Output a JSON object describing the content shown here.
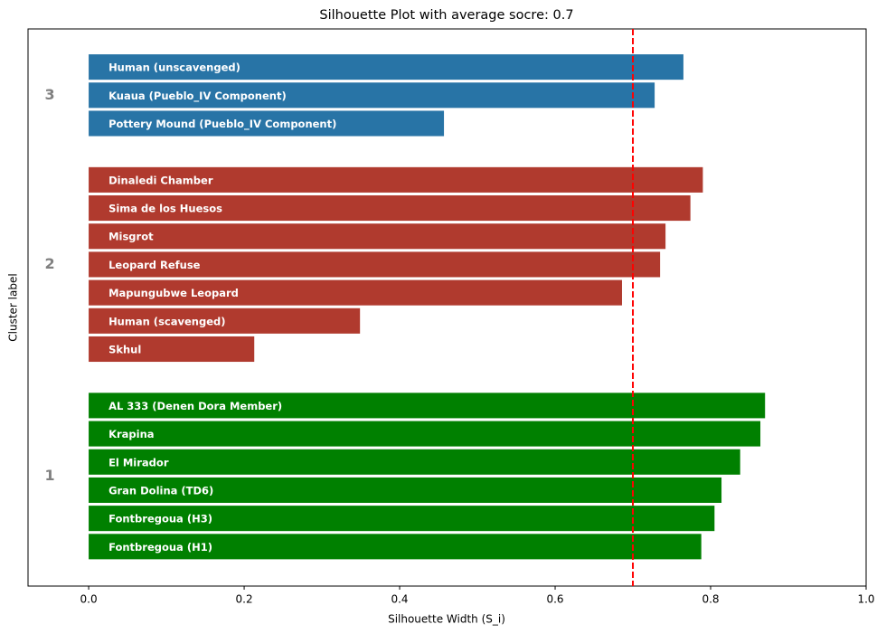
{
  "chart_data": {
    "type": "silhouette",
    "title": "Silhouette Plot with average socre: 0.7",
    "x_label": "Silhouette Width (S_i)",
    "y_label": "Cluster label",
    "xlim": [
      -0.078,
      1.0
    ],
    "xticks": [
      {
        "value": 0,
        "label": "0.0"
      },
      0.2,
      0.4,
      0.6,
      0.8,
      {
        "value": 1,
        "label": "1.0"
      }
    ],
    "average_line": 0.7,
    "average_line_color": "#ff0000",
    "series": [
      {
        "name": "1",
        "color": "#008000",
        "categories": [
          "AL 333 (Denen Dora Member)",
          "Krapina",
          "El Mirador",
          "Gran Dolina (TD6)",
          "Fontbregoua (H3)",
          "Fontbregoua (H1)"
        ],
        "values": [
          0.87,
          0.864,
          0.838,
          0.814,
          0.805,
          0.788
        ]
      },
      {
        "name": "2",
        "color": "#b03a2e",
        "categories": [
          "Dinaledi Chamber",
          "Sima de los Huesos",
          "Misgrot",
          "Leopard Refuse",
          "Mapungubwe Leopard",
          "Human (scavenged)",
          "Skhul"
        ],
        "values": [
          0.79,
          0.774,
          0.742,
          0.735,
          0.686,
          0.349,
          0.213
        ]
      },
      {
        "name": "3",
        "color": "#2874a6",
        "categories": [
          "Human (unscavenged)",
          "Kuaua (Pueblo_IV Component)",
          "Pottery Mound (Pueblo_IV Component)"
        ],
        "values": [
          0.765,
          0.728,
          0.457
        ]
      }
    ]
  }
}
